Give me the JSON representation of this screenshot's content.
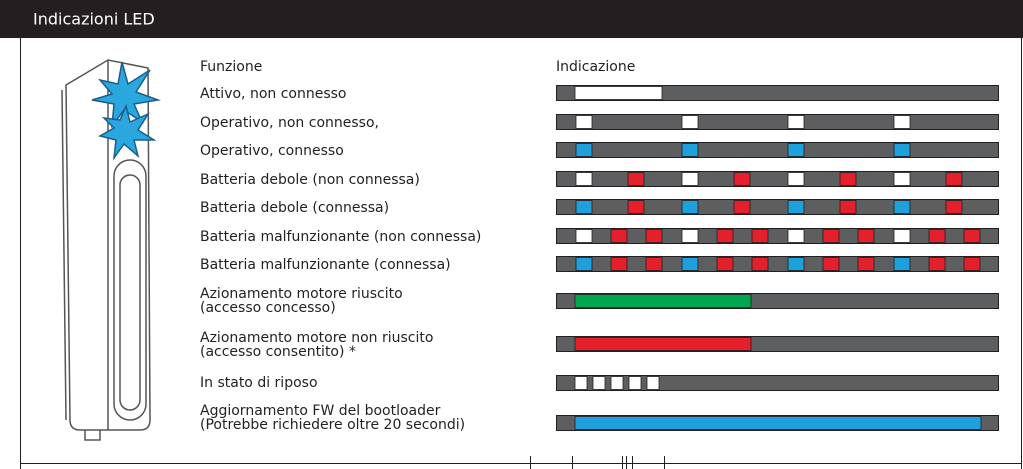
{
  "header": {
    "title": "Indicazioni LED"
  },
  "columns": {
    "function": "Funzione",
    "indication": "Indicazione"
  },
  "rows": [
    [
      "Attivo, non connesso"
    ],
    [
      "Operativo, non connesso,"
    ],
    [
      "Operativo, connesso"
    ],
    [
      "Batteria debole (non connessa)"
    ],
    [
      "Batteria debole (connessa)"
    ],
    [
      "Batteria malfunzionante (non connessa)"
    ],
    [
      "Batteria malfunzionante (connessa)"
    ],
    [
      "Azionamento motore riuscito",
      "(accesso concesso)"
    ],
    [
      "Azionamento motore non riuscito",
      "(accesso consentito) *"
    ],
    [
      "In stato di riposo"
    ],
    [
      "Aggiornamento FW del bootloader",
      "(Potrebbe richiedere oltre 20 secondi)"
    ]
  ]
}
